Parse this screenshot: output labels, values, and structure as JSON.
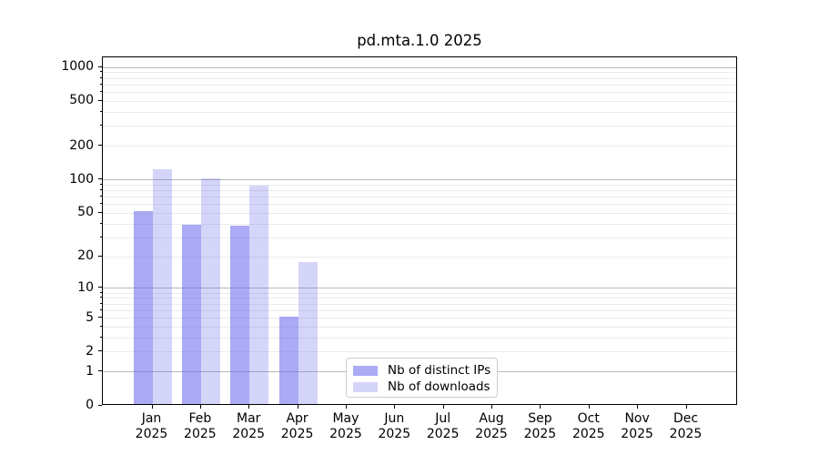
{
  "title": "pd.mta.1.0 2025",
  "legend": {
    "items": [
      {
        "label": "Nb of distinct IPs",
        "color": "rgba(101,101,237,0.55)"
      },
      {
        "label": "Nb of downloads",
        "color": "rgba(101,101,237,0.27)"
      }
    ]
  },
  "axes": {
    "y_ticks": [
      0,
      1,
      2,
      5,
      10,
      20,
      50,
      100,
      200,
      500,
      1000
    ],
    "x_month_labels": [
      "Jan",
      "Feb",
      "Mar",
      "Apr",
      "May",
      "Jun",
      "Jul",
      "Aug",
      "Sep",
      "Oct",
      "Nov",
      "Dec"
    ],
    "x_year_label": "2025"
  },
  "colors": {
    "major_grid": "#b9b9b9",
    "minor_grid": "#ebebeb",
    "axis": "#000000",
    "background": "#ffffff"
  },
  "chart_data": {
    "type": "bar",
    "title": "pd.mta.1.0 2025",
    "categories": [
      "Jan 2025",
      "Feb 2025",
      "Mar 2025",
      "Apr 2025",
      "May 2025",
      "Jun 2025",
      "Jul 2025",
      "Aug 2025",
      "Sep 2025",
      "Oct 2025",
      "Nov 2025",
      "Dec 2025"
    ],
    "series": [
      {
        "name": "Nb of distinct IPs",
        "values": [
          50,
          38,
          37,
          5,
          0,
          0,
          0,
          0,
          0,
          0,
          0,
          0
        ],
        "color": "rgba(101,101,237,0.55)"
      },
      {
        "name": "Nb of downloads",
        "values": [
          120,
          100,
          85,
          17,
          0,
          0,
          0,
          0,
          0,
          0,
          0,
          0
        ],
        "color": "rgba(101,101,237,0.27)"
      }
    ],
    "yscale": "log1p",
    "ylim": [
      0,
      1233
    ],
    "yticks": [
      0,
      1,
      2,
      5,
      10,
      20,
      50,
      100,
      200,
      500,
      1000
    ],
    "minor_grid_values": [
      2,
      3,
      4,
      5,
      6,
      7,
      8,
      9,
      20,
      30,
      40,
      50,
      60,
      70,
      80,
      90,
      200,
      300,
      400,
      500,
      600,
      700,
      800,
      900
    ],
    "major_grid_values": [
      1,
      10,
      100,
      1000
    ],
    "grid": true,
    "legend_position": "lower center",
    "xlabel": "",
    "ylabel": ""
  }
}
